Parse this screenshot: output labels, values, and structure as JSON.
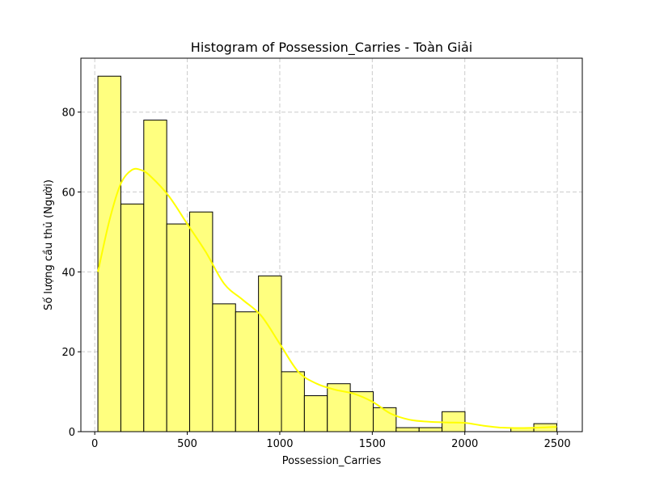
{
  "chart_data": {
    "type": "bar",
    "subtype": "histogram-with-kde",
    "title": "Histogram of Possession_Carries - Toàn Giải",
    "xlabel": "Possession_Carries",
    "ylabel": "Số lượng cầu thủ (Người)",
    "xlim": [
      -75,
      2635
    ],
    "ylim": [
      0,
      93.5
    ],
    "xticks": [
      0,
      500,
      1000,
      1500,
      2000,
      2500
    ],
    "yticks": [
      0,
      20,
      40,
      60,
      80
    ],
    "grid": true,
    "bin_edges": [
      17,
      141,
      265,
      389,
      513,
      637,
      761,
      885,
      1009,
      1133,
      1257,
      1381,
      1505,
      1629,
      1753,
      1877,
      2001,
      2125,
      2249,
      2373,
      2497
    ],
    "counts": [
      89,
      57,
      78,
      52,
      55,
      32,
      30,
      39,
      15,
      9,
      12,
      10,
      6,
      1,
      1,
      5,
      0,
      0,
      1,
      2
    ],
    "kde": {
      "x": [
        17,
        80,
        140,
        200,
        250,
        300,
        400,
        500,
        600,
        700,
        800,
        900,
        1000,
        1100,
        1200,
        1300,
        1400,
        1500,
        1600,
        1700,
        1800,
        1900,
        2000,
        2100,
        2200,
        2300,
        2400,
        2497
      ],
      "y": [
        40,
        53,
        62,
        65.5,
        65.5,
        64,
        59,
        52,
        45,
        37,
        33,
        29,
        22,
        15,
        12,
        10.5,
        9.5,
        7.5,
        4.5,
        3,
        2.5,
        2.3,
        2.2,
        1.5,
        1,
        0.9,
        1,
        1.2
      ]
    },
    "colors": {
      "bar_fill": "#ffff7f",
      "bar_edge": "#000000",
      "kde_line": "#ffff00",
      "grid": "#cccccc"
    }
  }
}
